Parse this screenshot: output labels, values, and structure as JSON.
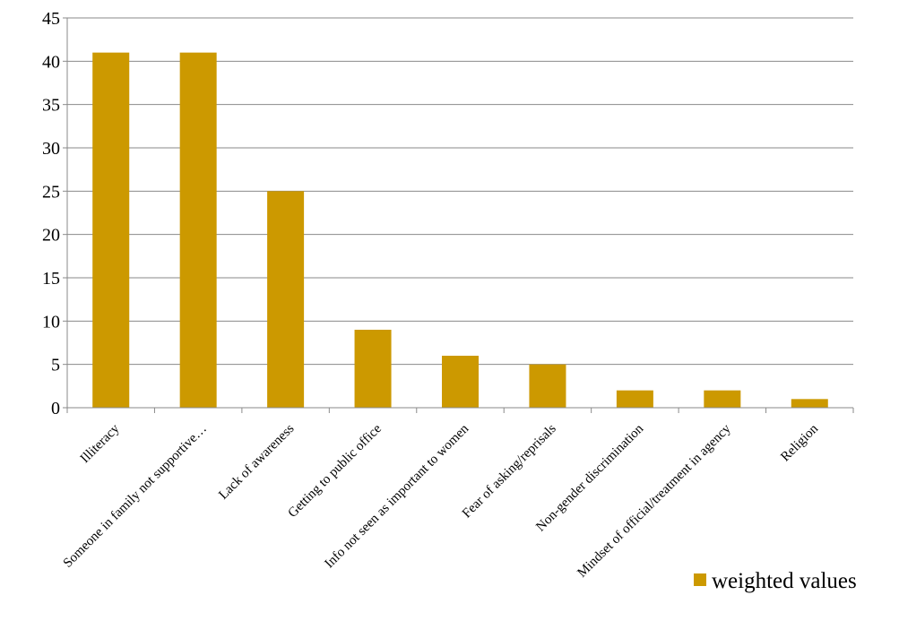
{
  "chart_data": {
    "type": "bar",
    "categories": [
      "Illiteracy",
      "Someone in family not supportive…",
      "Lack of awareness",
      "Getting to public office",
      "Info not seen as important to women",
      "Fear of asking/reprisals",
      "Non-gender discrimination",
      "Mindset of official/treatment in agency",
      "Religion"
    ],
    "series": [
      {
        "name": "weighted values",
        "color": "#cc9900",
        "values": [
          41,
          41,
          25,
          9,
          6,
          5,
          2,
          2,
          1
        ]
      }
    ],
    "ylim": [
      0,
      45
    ],
    "yticks": [
      0,
      5,
      10,
      15,
      20,
      25,
      30,
      35,
      40,
      45
    ],
    "grid": true,
    "legend": {
      "placement": "bottom-right"
    }
  }
}
